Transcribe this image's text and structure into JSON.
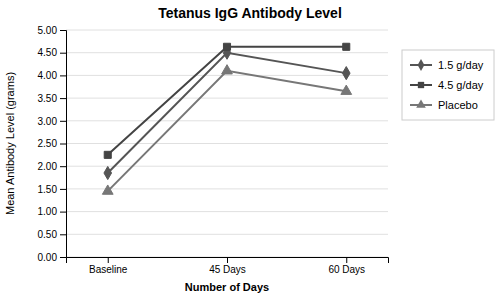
{
  "chart_data": {
    "type": "line",
    "title": "Tetanus IgG Antibody Level",
    "xlabel": "Number of Days",
    "ylabel": "Mean Antibody Level (grams)",
    "categories": [
      "Baseline",
      "45 Days",
      "60 Days"
    ],
    "series": [
      {
        "name": "1.5 g/day",
        "color": "#555555",
        "marker": "diamond",
        "values": [
          1.85,
          4.5,
          4.05
        ]
      },
      {
        "name": "4.5 g/day",
        "color": "#444444",
        "marker": "square",
        "values": [
          2.25,
          4.63,
          4.63
        ]
      },
      {
        "name": "Placebo",
        "color": "#777777",
        "marker": "triangle",
        "values": [
          1.45,
          4.1,
          3.65
        ]
      }
    ],
    "ylim": [
      0.0,
      5.0
    ],
    "yticks": [
      {
        "value": 0.0,
        "label": "0.00"
      },
      {
        "value": 0.5,
        "label": "0.50"
      },
      {
        "value": 1.0,
        "label": "1.00"
      },
      {
        "value": 1.5,
        "label": "1.50"
      },
      {
        "value": 2.0,
        "label": "2.00"
      },
      {
        "value": 2.5,
        "label": "2.50"
      },
      {
        "value": 3.0,
        "label": "3.00"
      },
      {
        "value": 3.5,
        "label": "3.50"
      },
      {
        "value": 4.0,
        "label": "4.00"
      },
      {
        "value": 4.5,
        "label": "4.50"
      },
      {
        "value": 5.0,
        "label": "5.00"
      }
    ],
    "grid": true,
    "legend": "right"
  }
}
